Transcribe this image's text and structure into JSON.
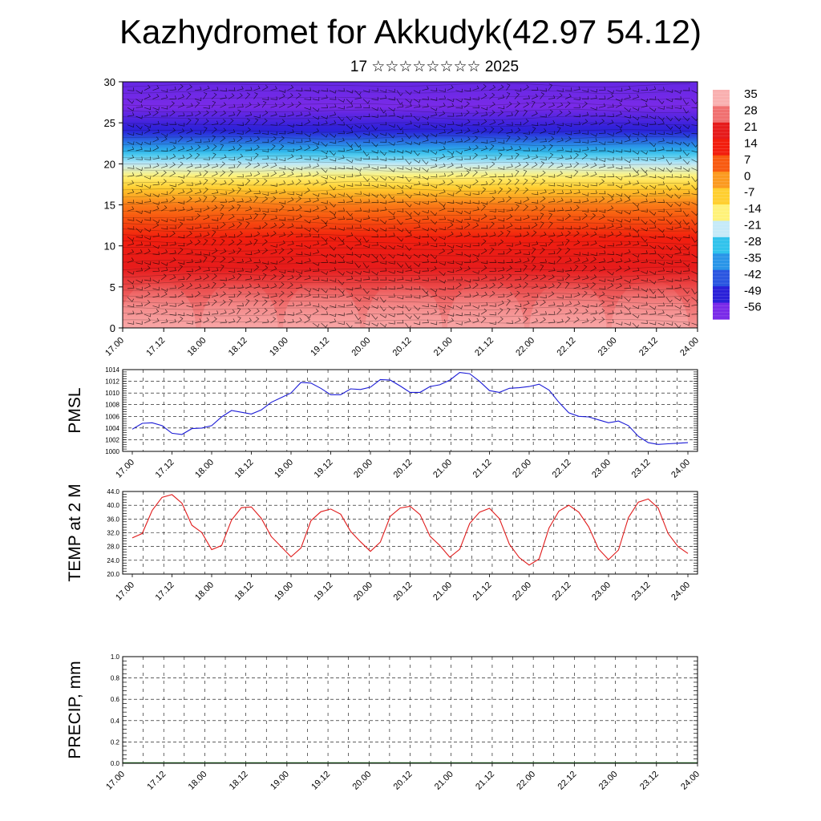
{
  "header": {
    "title": "Kazhydromet for Akkudyk(42.97 54.12)",
    "subtitle": "17 ☆☆☆☆☆☆☆☆ 2025"
  },
  "chart_data": [
    {
      "type": "heatmap",
      "title": "",
      "y_range": [
        0,
        30
      ],
      "y_ticks": [
        "0",
        "5",
        "10",
        "15",
        "20",
        "25",
        "30"
      ],
      "x_ticks": [
        "17.00",
        "17.12",
        "18.00",
        "18.12",
        "19.00",
        "19.12",
        "20.00",
        "20.12",
        "21.00",
        "21.12",
        "22.00",
        "22.12",
        "23.00",
        "23.12",
        "24.00"
      ],
      "colorbar": {
        "labels": [
          "35",
          "28",
          "21",
          "14",
          "7",
          "0",
          "-7",
          "-14",
          "-21",
          "-28",
          "-35",
          "-42",
          "-49",
          "-56"
        ],
        "colors": [
          "#f9b0b0",
          "#f07070",
          "#e61b1b",
          "#f21e0e",
          "#f85a10",
          "#fb9a20",
          "#ffcf30",
          "#fff27a",
          "#c5eaf8",
          "#31c3ec",
          "#2a95e8",
          "#2a55e0",
          "#2a20d8",
          "#7a2ae8"
        ]
      },
      "temperature_by_level": {
        "heights": [
          0,
          5,
          10,
          15,
          18,
          21,
          24,
          27,
          30
        ],
        "values": [
          35,
          27,
          18,
          4,
          -12,
          -28,
          -52,
          -60,
          -58
        ]
      },
      "wind_barbs": true
    },
    {
      "type": "line",
      "ylabel": "PMSL",
      "ylim": [
        1000,
        1014
      ],
      "y_ticks": [
        "1000",
        "1002",
        "1004",
        "1006",
        "1008",
        "1010",
        "1012",
        "1014"
      ],
      "x_ticks": [
        "17.00",
        "17.12",
        "18.00",
        "18.12",
        "19.00",
        "19.12",
        "20.00",
        "20.12",
        "21.00",
        "21.12",
        "22.00",
        "22.12",
        "23.00",
        "23.12",
        "24.00"
      ],
      "color": "#1b1bd6",
      "values": [
        1003.8,
        1004.8,
        1004.9,
        1004.4,
        1003.1,
        1002.9,
        1003.9,
        1004.0,
        1004.4,
        1005.9,
        1007.0,
        1006.7,
        1006.4,
        1007.1,
        1008.4,
        1009.2,
        1010.0,
        1011.8,
        1011.7,
        1010.8,
        1009.7,
        1009.7,
        1010.7,
        1010.6,
        1011.0,
        1012.3,
        1012.2,
        1011.2,
        1010.1,
        1010.1,
        1011.1,
        1011.4,
        1012.2,
        1013.5,
        1013.3,
        1012.0,
        1010.4,
        1010.1,
        1010.8,
        1010.9,
        1011.1,
        1011.5,
        1010.5,
        1008.4,
        1006.6,
        1006.0,
        1005.9,
        1005.4,
        1004.9,
        1005.2,
        1004.4,
        1002.6,
        1001.5,
        1001.2,
        1001.3,
        1001.4,
        1001.5
      ]
    },
    {
      "type": "line",
      "ylabel": "TEMP at 2 M",
      "ylim": [
        20,
        44
      ],
      "y_ticks": [
        "20.0",
        "24.0",
        "28.0",
        "32.0",
        "36.0",
        "40.0",
        "44.0"
      ],
      "x_ticks": [
        "17.00",
        "17.12",
        "18.00",
        "18.12",
        "19.00",
        "19.12",
        "20.00",
        "20.12",
        "21.00",
        "21.12",
        "22.00",
        "22.12",
        "23.00",
        "23.12",
        "24.00"
      ],
      "color": "#e01b1b",
      "values": [
        30.5,
        31.8,
        38.5,
        42.3,
        43.1,
        40.6,
        34.2,
        32.1,
        27.1,
        28.3,
        35.7,
        39.3,
        39.5,
        36.2,
        30.9,
        28.0,
        25.0,
        27.6,
        35.5,
        38.1,
        38.9,
        37.4,
        32.4,
        29.4,
        26.6,
        29.3,
        36.8,
        39.2,
        39.7,
        37.3,
        31.0,
        28.3,
        24.9,
        27.2,
        34.7,
        38.0,
        39.1,
        36.1,
        28.7,
        24.8,
        22.6,
        24.4,
        33.4,
        38.3,
        40.0,
        38.0,
        33.7,
        27.3,
        24.2,
        27.0,
        36.4,
        40.9,
        41.8,
        39.2,
        31.8,
        28.0,
        26.0
      ]
    },
    {
      "type": "bar",
      "ylabel": "PRECIP, mm",
      "ylim": [
        0,
        1
      ],
      "y_ticks": [
        "0.0",
        "0.2",
        "0.4",
        "0.6",
        "0.8",
        "1.0"
      ],
      "x_ticks": [
        "17.00",
        "17.12",
        "18.00",
        "18.12",
        "19.00",
        "19.12",
        "20.00",
        "20.12",
        "21.00",
        "21.12",
        "22.00",
        "22.12",
        "23.00",
        "23.12",
        "24.00"
      ],
      "values": [
        0,
        0,
        0,
        0,
        0,
        0,
        0,
        0,
        0,
        0,
        0,
        0,
        0,
        0,
        0,
        0,
        0,
        0,
        0,
        0,
        0,
        0,
        0,
        0,
        0,
        0,
        0,
        0,
        0,
        0,
        0,
        0,
        0,
        0,
        0,
        0,
        0,
        0,
        0,
        0,
        0,
        0,
        0,
        0,
        0,
        0,
        0,
        0,
        0,
        0,
        0,
        0,
        0,
        0,
        0,
        0,
        0
      ]
    }
  ]
}
